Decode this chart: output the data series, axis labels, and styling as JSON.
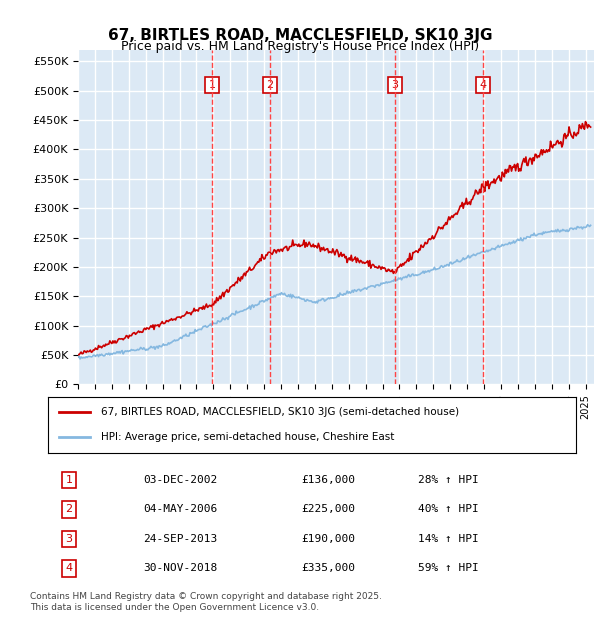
{
  "title": "67, BIRTLES ROAD, MACCLESFIELD, SK10 3JG",
  "subtitle": "Price paid vs. HM Land Registry's House Price Index (HPI)",
  "ylabel_ticks": [
    "£0",
    "£50K",
    "£100K",
    "£150K",
    "£200K",
    "£250K",
    "£300K",
    "£350K",
    "£400K",
    "£450K",
    "£500K",
    "£550K"
  ],
  "ytick_values": [
    0,
    50000,
    100000,
    150000,
    200000,
    250000,
    300000,
    350000,
    400000,
    450000,
    500000,
    550000
  ],
  "ylim": [
    0,
    570000
  ],
  "xlim_start": 1995.0,
  "xlim_end": 2025.5,
  "background_color": "#ffffff",
  "plot_bg_color": "#dce9f5",
  "grid_color": "#ffffff",
  "sale_markers": [
    {
      "label": "1",
      "date_x": 2002.92,
      "price": 136000,
      "hpi_pct": 28
    },
    {
      "label": "2",
      "date_x": 2006.34,
      "price": 225000,
      "hpi_pct": 40
    },
    {
      "label": "3",
      "date_x": 2013.73,
      "price": 190000,
      "hpi_pct": 14
    },
    {
      "label": "4",
      "date_x": 2018.92,
      "price": 335000,
      "hpi_pct": 59
    }
  ],
  "vline_color": "#ff4444",
  "vline_style": "--",
  "marker_box_color": "#cc0000",
  "red_line_color": "#cc0000",
  "blue_line_color": "#85b8e0",
  "legend_red_label": "67, BIRTLES ROAD, MACCLESFIELD, SK10 3JG (semi-detached house)",
  "legend_blue_label": "HPI: Average price, semi-detached house, Cheshire East",
  "footer_text": "Contains HM Land Registry data © Crown copyright and database right 2025.\nThis data is licensed under the Open Government Licence v3.0.",
  "table_rows": [
    [
      "1",
      "03-DEC-2002",
      "£136,000",
      "28% ↑ HPI"
    ],
    [
      "2",
      "04-MAY-2006",
      "£225,000",
      "40% ↑ HPI"
    ],
    [
      "3",
      "24-SEP-2013",
      "£190,000",
      "14% ↑ HPI"
    ],
    [
      "4",
      "30-NOV-2018",
      "£335,000",
      "59% ↑ HPI"
    ]
  ]
}
